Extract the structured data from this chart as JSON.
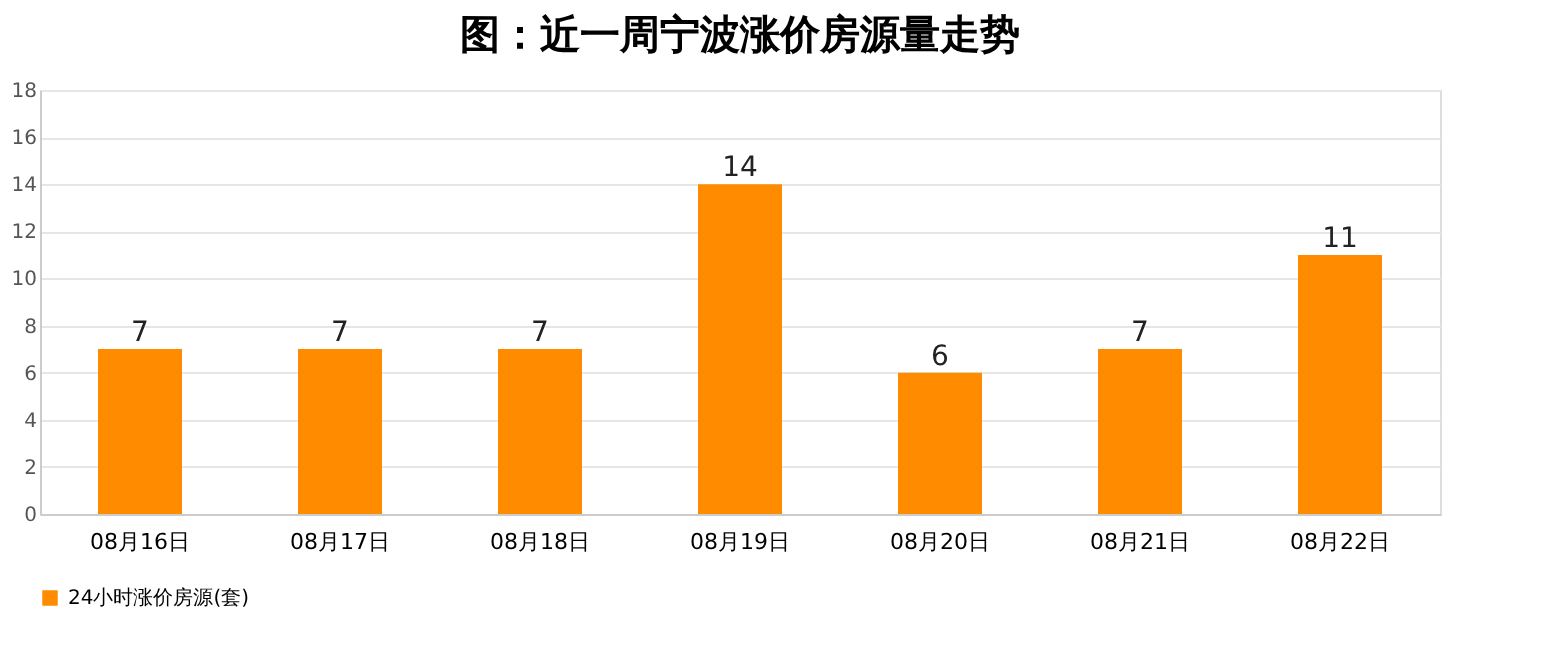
{
  "chart_data": {
    "type": "bar",
    "title": "图：近一周宁波涨价房源量走势",
    "categories": [
      "08月16日",
      "08月17日",
      "08月18日",
      "08月19日",
      "08月20日",
      "08月21日",
      "08月22日"
    ],
    "series": [
      {
        "name": "24小时涨价房源(套)",
        "color": "#ff8c00",
        "values": [
          7,
          7,
          7,
          14,
          6,
          7,
          11
        ]
      }
    ],
    "ylim": [
      0,
      18
    ],
    "yticks": [
      0,
      2,
      4,
      6,
      8,
      10,
      12,
      14,
      16,
      18
    ],
    "grid": "y",
    "data_labels": true,
    "legend": "bottom"
  }
}
